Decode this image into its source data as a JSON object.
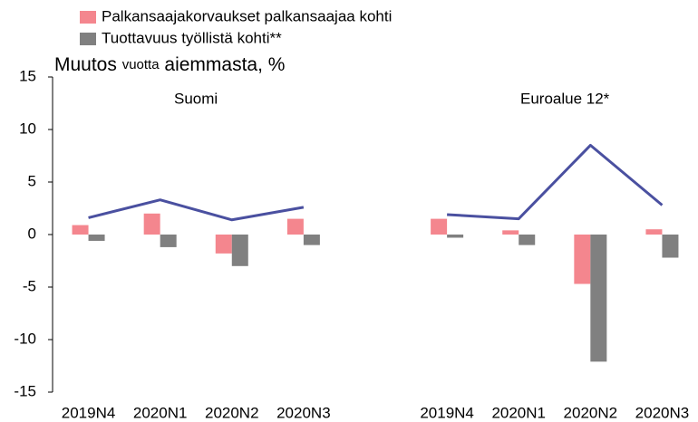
{
  "chart_data": {
    "type": "bar",
    "ylabel": [
      "Muutos ",
      "vuotta",
      " aiemmasta, %"
    ],
    "annotations": [
      "Suomi",
      "Euroalue 12*"
    ],
    "categories": [
      "2019N4",
      "2020N1",
      "2020N2",
      "2020N3",
      null,
      "2019N4",
      "2020N1",
      "2020N2",
      "2020N3"
    ],
    "series": [
      {
        "name": "Palkansaajakorvaukset palkansaajaa kohti",
        "color": "#f4868e",
        "values": [
          0.9,
          2.0,
          -1.8,
          1.5,
          null,
          1.5,
          0.4,
          -4.7,
          0.5
        ]
      },
      {
        "name": "Tuottavuus työllistä kohti**",
        "color": "#808080",
        "values": [
          -0.6,
          -1.2,
          -3.0,
          -1.0,
          null,
          -0.3,
          -1.0,
          -12.1,
          -2.2
        ]
      },
      {
        "type": "line",
        "color": "#4a50a0",
        "values": [
          1.6,
          3.3,
          1.4,
          2.6,
          null,
          1.9,
          1.5,
          8.5,
          2.8
        ]
      }
    ],
    "ylim": [
      -15,
      15
    ],
    "yticks": [
      -15,
      -10,
      -5,
      0,
      5,
      10,
      15
    ],
    "grid": false
  }
}
